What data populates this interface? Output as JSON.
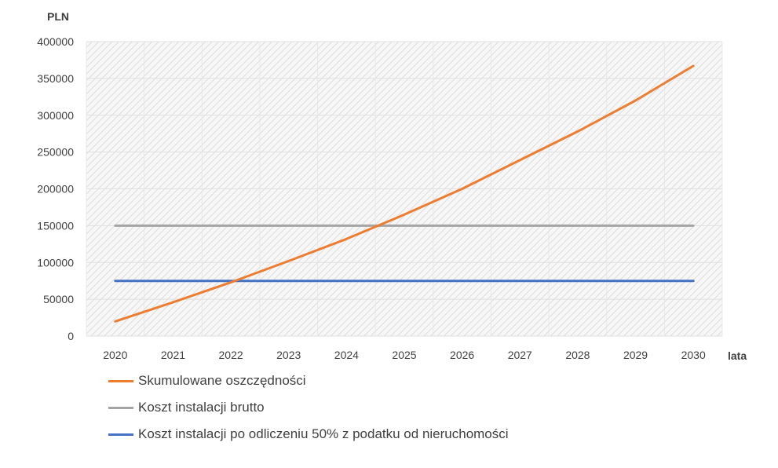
{
  "chart_data": {
    "type": "line",
    "ylabel": "PLN",
    "xlabel": "lata",
    "ylim": [
      0,
      400000
    ],
    "yticks": [
      0,
      50000,
      100000,
      150000,
      200000,
      250000,
      300000,
      350000,
      400000
    ],
    "ytick_labels": [
      "0",
      "50000",
      "100000",
      "150000",
      "200000",
      "250000",
      "300000",
      "350000",
      "400000"
    ],
    "categories": [
      "2020",
      "2021",
      "2022",
      "2023",
      "2024",
      "2025",
      "2026",
      "2027",
      "2028",
      "2029",
      "2030"
    ],
    "series": [
      {
        "name": "Skumulowane oszczędności",
        "color": "#ED7D31",
        "values": [
          20000,
          46000,
          73000,
          102000,
          132000,
          165000,
          200000,
          239000,
          278000,
          320000,
          367000
        ]
      },
      {
        "name": "Koszt instalacji brutto",
        "color": "#A5A5A5",
        "values": [
          150000,
          150000,
          150000,
          150000,
          150000,
          150000,
          150000,
          150000,
          150000,
          150000,
          150000
        ]
      },
      {
        "name": "Koszt instalacji po odliczeniu 50% z podatku od nieruchomości",
        "color": "#4472C4",
        "values": [
          75000,
          75000,
          75000,
          75000,
          75000,
          75000,
          75000,
          75000,
          75000,
          75000,
          75000
        ]
      }
    ],
    "grid": true,
    "legend_position": "bottom-left"
  }
}
